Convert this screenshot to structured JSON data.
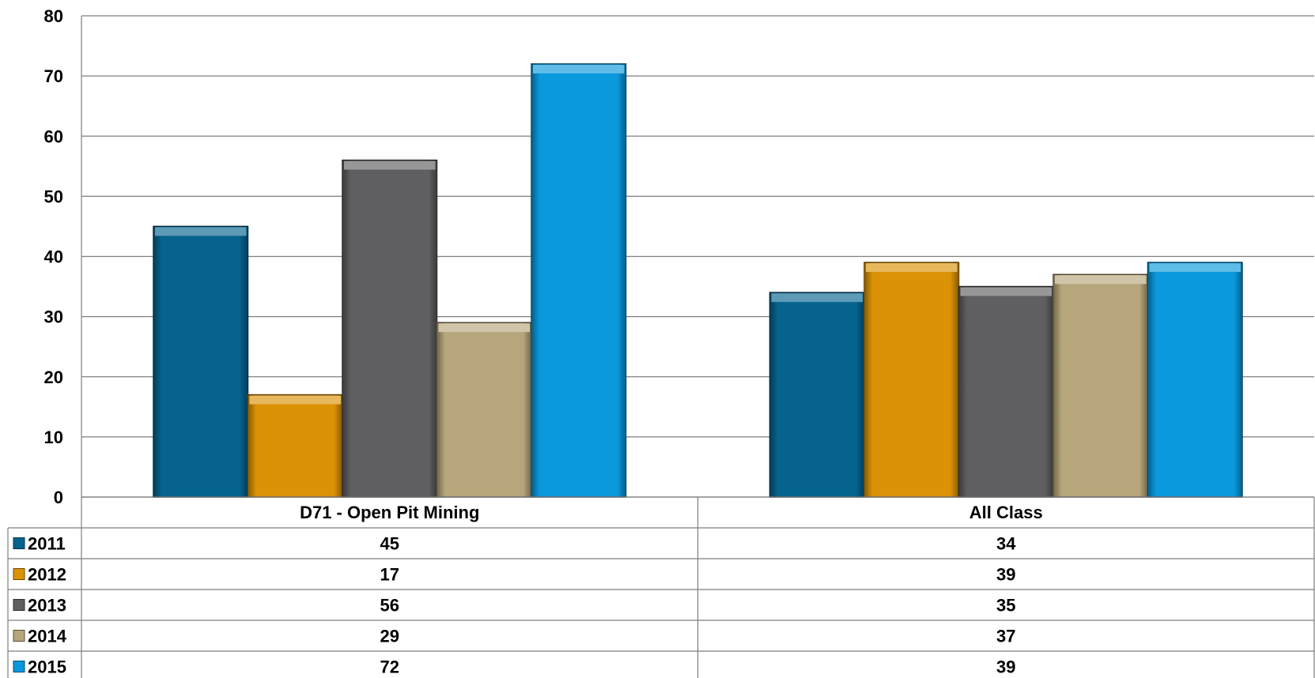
{
  "chart_data": {
    "type": "bar",
    "title": "",
    "xlabel": "",
    "ylabel": "",
    "ylim": [
      0,
      80
    ],
    "yticks": [
      0,
      10,
      20,
      30,
      40,
      50,
      60,
      70,
      80
    ],
    "grid": true,
    "legend": "data-table-left",
    "categories": [
      "D71 - Open Pit Mining",
      "All Class"
    ],
    "series": [
      {
        "name": "2011",
        "values": [
          45,
          34
        ],
        "color": "#06638e"
      },
      {
        "name": "2012",
        "values": [
          17,
          39
        ],
        "color": "#db9205"
      },
      {
        "name": "2013",
        "values": [
          56,
          35
        ],
        "color": "#5f5f61"
      },
      {
        "name": "2014",
        "values": [
          29,
          37
        ],
        "color": "#b7a67b"
      },
      {
        "name": "2015",
        "values": [
          72,
          39
        ],
        "color": "#0999dc"
      }
    ]
  }
}
